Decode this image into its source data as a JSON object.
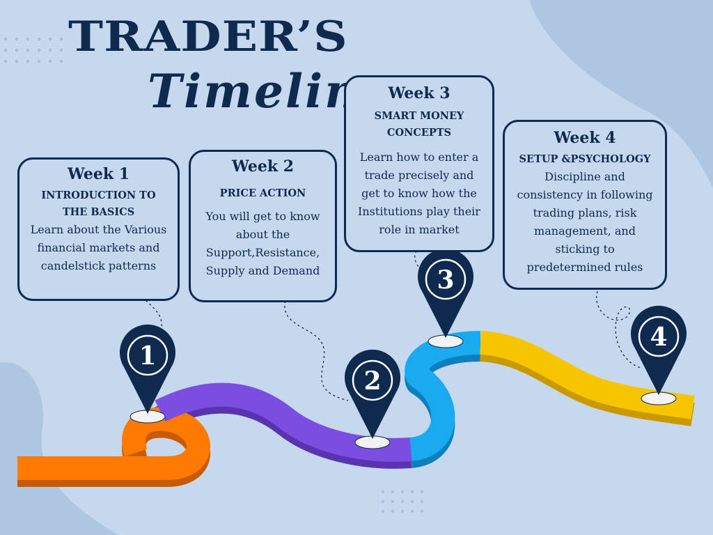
{
  "title": {
    "main": "TRADER’S",
    "script": "Timeline"
  },
  "weeks": [
    {
      "marker": "1",
      "label": "Week 1",
      "heading": "INTRODUCTION TO THE BASICS",
      "body": "Learn about the Various financial markets and candelstick patterns",
      "color": "#ff7a00"
    },
    {
      "marker": "2",
      "label": "Week 2",
      "heading": "PRICE ACTION",
      "body": "You will get to know about the Support,Resistance, Supply and Demand",
      "color": "#7b4de0"
    },
    {
      "marker": "3",
      "label": "Week 3",
      "heading": "SMART MONEY CONCEPTS",
      "body": "Learn how to enter a trade precisely and get to know how the Institutions play their role in market",
      "color": "#19aaf0"
    },
    {
      "marker": "4",
      "label": "Week 4",
      "heading": "SETUP &PSYCHOLOGY",
      "body": "Discipline and consistency in following trading plans, risk management, and sticking to predetermined rules",
      "color": "#f7c500"
    }
  ],
  "colors": {
    "navy": "#0e2a4e",
    "background": "#c6d8ee"
  }
}
